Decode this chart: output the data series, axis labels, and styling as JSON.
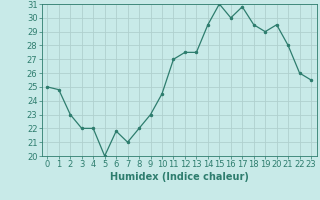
{
  "x": [
    0,
    1,
    2,
    3,
    4,
    5,
    6,
    7,
    8,
    9,
    10,
    11,
    12,
    13,
    14,
    15,
    16,
    17,
    18,
    19,
    20,
    21,
    22,
    23
  ],
  "y": [
    25.0,
    24.8,
    23.0,
    22.0,
    22.0,
    20.0,
    21.8,
    21.0,
    22.0,
    23.0,
    24.5,
    27.0,
    27.5,
    27.5,
    29.5,
    31.0,
    30.0,
    30.8,
    29.5,
    29.0,
    29.5,
    28.0,
    26.0,
    25.5
  ],
  "line_color": "#2e7d6e",
  "marker": ".",
  "marker_size": 3,
  "bg_color": "#c8eae8",
  "grid_color": "#b0d0ce",
  "axes_color": "#2e7d6e",
  "tick_color": "#2e7d6e",
  "label_color": "#2e7d6e",
  "xlabel": "Humidex (Indice chaleur)",
  "ylim": [
    20,
    31
  ],
  "xlim": [
    -0.5,
    23.5
  ],
  "yticks": [
    20,
    21,
    22,
    23,
    24,
    25,
    26,
    27,
    28,
    29,
    30,
    31
  ],
  "xticks": [
    0,
    1,
    2,
    3,
    4,
    5,
    6,
    7,
    8,
    9,
    10,
    11,
    12,
    13,
    14,
    15,
    16,
    17,
    18,
    19,
    20,
    21,
    22,
    23
  ],
  "font_size_label": 7,
  "font_size_tick": 6
}
